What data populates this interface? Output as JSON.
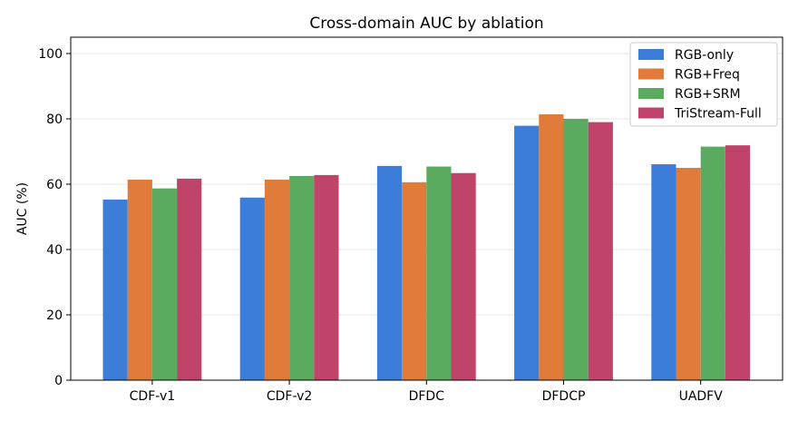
{
  "chart_data": {
    "type": "bar",
    "title": "Cross-domain AUC by ablation",
    "xlabel": "",
    "ylabel": "AUC (%)",
    "ylim": [
      0,
      105
    ],
    "yticks": [
      0,
      20,
      40,
      60,
      80,
      100
    ],
    "grid": "y",
    "legend_position": "top-right",
    "categories": [
      "CDF-v1",
      "CDF-v2",
      "DFDC",
      "DFDCP",
      "UADFV"
    ],
    "series": [
      {
        "name": "RGB-only",
        "color": "#3b7dd8",
        "values": [
          55.3,
          55.9,
          65.6,
          77.9,
          66.1
        ]
      },
      {
        "name": "RGB+Freq",
        "color": "#e07b39",
        "values": [
          61.4,
          61.4,
          60.6,
          81.4,
          65.0
        ]
      },
      {
        "name": "RGB+SRM",
        "color": "#5aaa5f",
        "values": [
          58.7,
          62.5,
          65.4,
          80.0,
          71.5
        ]
      },
      {
        "name": "TriStream-Full",
        "color": "#c0446a",
        "values": [
          61.7,
          62.8,
          63.4,
          79.0,
          71.9
        ]
      }
    ]
  }
}
